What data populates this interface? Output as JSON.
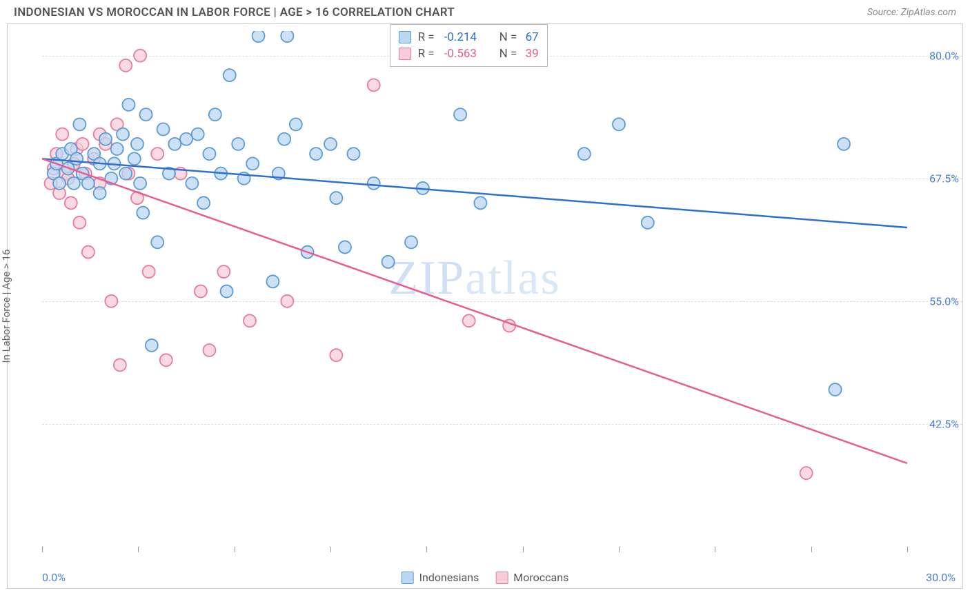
{
  "header": {
    "title": "INDONESIAN VS MOROCCAN IN LABOR FORCE | AGE > 16 CORRELATION CHART",
    "source": "Source: ZipAtlas.com"
  },
  "ylabel": "In Labor Force | Age > 16",
  "watermark_a": "ZIP",
  "watermark_b": "atlas",
  "chart": {
    "type": "scatter-with-regression",
    "xlim": [
      0,
      30
    ],
    "ylim": [
      30,
      82.5
    ],
    "yticks": [
      42.5,
      55.0,
      67.5,
      80.0
    ],
    "ytick_labels": [
      "42.5%",
      "55.0%",
      "67.5%",
      "80.0%"
    ],
    "xticks": [
      0,
      3.33,
      6.67,
      10,
      13.33,
      16.67,
      20,
      23.33,
      26.67,
      30
    ],
    "xlabel_min": "0.0%",
    "xlabel_max": "30.0%",
    "grid_color": "#dddddd",
    "background": "#ffffff",
    "marker_radius": 9,
    "marker_stroke_width": 1.8,
    "line_width": 2.5,
    "series": [
      {
        "name": "Indonesians",
        "color_fill": "#bcd7f3",
        "color_stroke": "#5b9bd5",
        "line_color": "#2f6fd0",
        "R": "-0.214",
        "N": "67",
        "regression": {
          "x1": 0,
          "y1": 69.5,
          "x2": 30,
          "y2": 62.5
        },
        "points": [
          [
            0.4,
            68
          ],
          [
            0.5,
            69
          ],
          [
            0.6,
            67
          ],
          [
            0.7,
            70
          ],
          [
            0.9,
            68.5
          ],
          [
            1.0,
            70.5
          ],
          [
            1.1,
            67
          ],
          [
            1.2,
            69.5
          ],
          [
            1.3,
            73
          ],
          [
            1.4,
            68
          ],
          [
            1.6,
            67
          ],
          [
            1.8,
            70
          ],
          [
            2.0,
            69
          ],
          [
            2.0,
            66
          ],
          [
            2.2,
            71.5
          ],
          [
            2.4,
            67.5
          ],
          [
            2.5,
            69
          ],
          [
            2.6,
            70.5
          ],
          [
            2.8,
            72
          ],
          [
            2.9,
            68
          ],
          [
            3.0,
            75
          ],
          [
            3.2,
            69.5
          ],
          [
            3.3,
            71
          ],
          [
            3.4,
            67
          ],
          [
            3.6,
            74
          ],
          [
            3.8,
            50.5
          ],
          [
            4.0,
            61
          ],
          [
            4.2,
            72.5
          ],
          [
            4.4,
            68
          ],
          [
            4.6,
            71
          ],
          [
            5.0,
            71.5
          ],
          [
            5.2,
            67
          ],
          [
            5.4,
            72
          ],
          [
            5.6,
            65
          ],
          [
            5.8,
            70
          ],
          [
            6.0,
            74
          ],
          [
            6.2,
            68
          ],
          [
            6.5,
            78
          ],
          [
            6.8,
            71
          ],
          [
            7.0,
            67.5
          ],
          [
            7.3,
            69
          ],
          [
            7.5,
            82
          ],
          [
            8.0,
            57
          ],
          [
            8.2,
            68
          ],
          [
            8.4,
            71.5
          ],
          [
            8.5,
            82
          ],
          [
            8.8,
            73
          ],
          [
            9.2,
            60
          ],
          [
            9.5,
            70
          ],
          [
            10.0,
            71
          ],
          [
            10.2,
            65.5
          ],
          [
            10.5,
            60.5
          ],
          [
            10.8,
            70
          ],
          [
            11.5,
            67
          ],
          [
            12.0,
            59
          ],
          [
            12.8,
            61
          ],
          [
            13.2,
            66.5
          ],
          [
            14.5,
            74
          ],
          [
            15.2,
            65
          ],
          [
            18.8,
            70
          ],
          [
            20.0,
            73
          ],
          [
            21.0,
            63
          ],
          [
            27.5,
            46
          ],
          [
            27.8,
            71
          ],
          [
            6.4,
            56
          ],
          [
            3.5,
            64
          ]
        ]
      },
      {
        "name": "Moroccans",
        "color_fill": "#f6cdd9",
        "color_stroke": "#e87ba0",
        "line_color": "#e85c8e",
        "R": "-0.563",
        "N": "39",
        "regression": {
          "x1": 0,
          "y1": 69.5,
          "x2": 30,
          "y2": 38.5
        },
        "points": [
          [
            0.3,
            67
          ],
          [
            0.4,
            68.5
          ],
          [
            0.5,
            70
          ],
          [
            0.6,
            66
          ],
          [
            0.7,
            72
          ],
          [
            0.8,
            68
          ],
          [
            0.9,
            67.5
          ],
          [
            1.0,
            65
          ],
          [
            1.1,
            69
          ],
          [
            1.2,
            70.5
          ],
          [
            1.3,
            63
          ],
          [
            1.4,
            71
          ],
          [
            1.5,
            68
          ],
          [
            1.6,
            60
          ],
          [
            1.8,
            69.5
          ],
          [
            2.0,
            67
          ],
          [
            2.0,
            72
          ],
          [
            2.2,
            71
          ],
          [
            2.4,
            55
          ],
          [
            2.6,
            73
          ],
          [
            2.7,
            48.5
          ],
          [
            2.9,
            79
          ],
          [
            3.0,
            68
          ],
          [
            3.3,
            65.5
          ],
          [
            3.4,
            80
          ],
          [
            3.7,
            58
          ],
          [
            4.0,
            70
          ],
          [
            4.3,
            49
          ],
          [
            4.8,
            68
          ],
          [
            5.5,
            56
          ],
          [
            5.8,
            50
          ],
          [
            6.3,
            58
          ],
          [
            7.2,
            53
          ],
          [
            8.5,
            55
          ],
          [
            10.2,
            49.5
          ],
          [
            11.5,
            77
          ],
          [
            14.8,
            53
          ],
          [
            16.2,
            52.5
          ],
          [
            26.5,
            37.5
          ]
        ]
      }
    ]
  },
  "legend_bottom": [
    {
      "label": "Indonesians",
      "fill": "#bcd7f3",
      "stroke": "#5b9bd5"
    },
    {
      "label": "Moroccans",
      "fill": "#f6cdd9",
      "stroke": "#e87ba0"
    }
  ],
  "r_text": "R =",
  "n_text": "N ="
}
